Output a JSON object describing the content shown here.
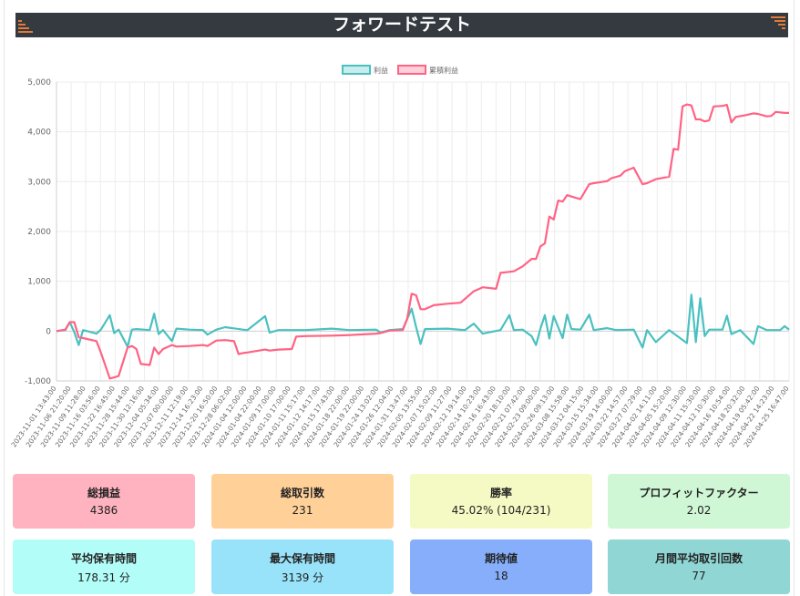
{
  "page": {
    "title": "フォワードテスト"
  },
  "colors": {
    "header_bg": "#343a40",
    "profit_line": "#4bc0c0",
    "cumulative_line": "#ff6384",
    "corner_accent": "#e07b39"
  },
  "icons": {
    "left_corner": "stripes-icon",
    "right_corner": "stripes-icon"
  },
  "chart_data": {
    "type": "line",
    "legend_position": "top",
    "grid": true,
    "ylim": [
      -1000,
      5000
    ],
    "yticks": [
      "5,000",
      "4,000",
      "3,000",
      "2,000",
      "1,000",
      "0",
      "-1,000"
    ],
    "ytick_values": [
      5000,
      4000,
      3000,
      2000,
      1000,
      0,
      -1000
    ],
    "x_labels": [
      "2023-11-01 13:43:00",
      "2023-11-06 21:20:00",
      "2023-11-09 11:28:00",
      "2023-11-16 03:56:00",
      "2023-11-22 16:45:00",
      "2023-11-28 15:44:00",
      "2023-11-30 12:16:00",
      "2023-12-04 05:34:00",
      "2023-12-07 00:00:00",
      "2023-12-11 12:19:00",
      "2023-12-14 16:23:00",
      "2023-12-20 16:50:00",
      "2023-12-28 06:02:00",
      "2024-01-04 12:00:00",
      "2024-01-04 22:00:00",
      "2024-01-09 17:00:00",
      "2024-01-10 17:00:00",
      "2024-01-11 15:17:00",
      "2024-01-12 14:17:00",
      "2024-01-15 17:43:00",
      "2024-01-18 22:00:00",
      "2024-01-19 22:00:00",
      "2024-01-24 13:02:00",
      "2024-01-26 12:04:00",
      "2024-01-31 13:47:00",
      "2024-02-05 13:55:00",
      "2024-02-07 15:02:00",
      "2024-02-09 11:27:00",
      "2024-02-12 19:14:00",
      "2024-02-14 10:23:00",
      "2024-02-16 16:43:00",
      "2024-02-20 18:10:00",
      "2024-02-21 07:42:00",
      "2024-02-23 09:00:00",
      "2024-02-26 09:13:00",
      "2024-03-08 15:58:00",
      "2024-03-12 04:15:00",
      "2024-03-15 15:34:00",
      "2024-03-19 14:00:00",
      "2024-03-22 14:57:00",
      "2024-03-27 07:29:00",
      "2024-04-02 14:11:00",
      "2024-04-05 15:20:00",
      "2024-04-09 12:30:00",
      "2024-04-11 15:30:00",
      "2024-04-12 10:30:00",
      "2024-04-16 10:54:00",
      "2024-04-18 20:32:00",
      "2024-04-19 05:42:00",
      "2024-04-22 14:23:00",
      "2024-04-25 16:47:00"
    ],
    "series": [
      {
        "name": "利益",
        "color": "#4bc0c0",
        "points": [
          [
            0,
            0
          ],
          [
            2,
            20
          ],
          [
            3,
            180
          ],
          [
            4,
            -20
          ],
          [
            5,
            -280
          ],
          [
            6,
            20
          ],
          [
            9,
            -50
          ],
          [
            10,
            30
          ],
          [
            12,
            320
          ],
          [
            13,
            -40
          ],
          [
            14,
            30
          ],
          [
            16,
            -310
          ],
          [
            17,
            30
          ],
          [
            18,
            40
          ],
          [
            21,
            20
          ],
          [
            22,
            350
          ],
          [
            23,
            -60
          ],
          [
            24,
            20
          ],
          [
            26,
            -200
          ],
          [
            27,
            50
          ],
          [
            30,
            30
          ],
          [
            33,
            20
          ],
          [
            34,
            -70
          ],
          [
            36,
            30
          ],
          [
            38,
            80
          ],
          [
            42,
            30
          ],
          [
            43,
            20
          ],
          [
            47,
            300
          ],
          [
            48,
            -30
          ],
          [
            50,
            20
          ],
          [
            56,
            20
          ],
          [
            62,
            50
          ],
          [
            66,
            20
          ],
          [
            72,
            30
          ],
          [
            73,
            -30
          ],
          [
            75,
            20
          ],
          [
            78,
            40
          ],
          [
            80,
            450
          ],
          [
            81,
            80
          ],
          [
            82,
            -260
          ],
          [
            83,
            40
          ],
          [
            88,
            50
          ],
          [
            92,
            20
          ],
          [
            94,
            150
          ],
          [
            96,
            -50
          ],
          [
            100,
            20
          ],
          [
            102,
            320
          ],
          [
            103,
            20
          ],
          [
            105,
            30
          ],
          [
            107,
            -100
          ],
          [
            108,
            -280
          ],
          [
            109,
            50
          ],
          [
            110,
            320
          ],
          [
            111,
            -150
          ],
          [
            112,
            300
          ],
          [
            114,
            -140
          ],
          [
            115,
            330
          ],
          [
            116,
            40
          ],
          [
            118,
            30
          ],
          [
            120,
            330
          ],
          [
            121,
            20
          ],
          [
            124,
            60
          ],
          [
            126,
            20
          ],
          [
            130,
            30
          ],
          [
            132,
            -330
          ],
          [
            133,
            20
          ],
          [
            135,
            -220
          ],
          [
            138,
            20
          ],
          [
            142,
            -240
          ],
          [
            143,
            730
          ],
          [
            144,
            -220
          ],
          [
            145,
            660
          ],
          [
            146,
            -100
          ],
          [
            147,
            30
          ],
          [
            150,
            30
          ],
          [
            151,
            310
          ],
          [
            152,
            -60
          ],
          [
            154,
            20
          ],
          [
            157,
            -260
          ],
          [
            158,
            100
          ],
          [
            160,
            20
          ],
          [
            163,
            20
          ],
          [
            164,
            100
          ],
          [
            165,
            30
          ]
        ]
      },
      {
        "name": "累積利益",
        "color": "#ff6384",
        "points": [
          [
            0,
            0
          ],
          [
            2,
            30
          ],
          [
            3,
            180
          ],
          [
            4,
            180
          ],
          [
            5,
            -120
          ],
          [
            6,
            -140
          ],
          [
            9,
            -200
          ],
          [
            10,
            -430
          ],
          [
            12,
            -950
          ],
          [
            13,
            -930
          ],
          [
            14,
            -900
          ],
          [
            16,
            -330
          ],
          [
            17,
            -300
          ],
          [
            18,
            -360
          ],
          [
            19,
            -660
          ],
          [
            21,
            -680
          ],
          [
            22,
            -330
          ],
          [
            23,
            -460
          ],
          [
            24,
            -360
          ],
          [
            26,
            -280
          ],
          [
            27,
            -310
          ],
          [
            30,
            -300
          ],
          [
            33,
            -280
          ],
          [
            34,
            -300
          ],
          [
            36,
            -190
          ],
          [
            38,
            -180
          ],
          [
            40,
            -200
          ],
          [
            41,
            -460
          ],
          [
            42,
            -440
          ],
          [
            43,
            -430
          ],
          [
            47,
            -370
          ],
          [
            48,
            -390
          ],
          [
            50,
            -370
          ],
          [
            53,
            -360
          ],
          [
            54,
            -110
          ],
          [
            56,
            -100
          ],
          [
            62,
            -90
          ],
          [
            66,
            -80
          ],
          [
            70,
            -60
          ],
          [
            72,
            -50
          ],
          [
            73,
            -40
          ],
          [
            75,
            10
          ],
          [
            78,
            20
          ],
          [
            79,
            250
          ],
          [
            80,
            750
          ],
          [
            81,
            720
          ],
          [
            82,
            440
          ],
          [
            83,
            440
          ],
          [
            85,
            520
          ],
          [
            88,
            550
          ],
          [
            91,
            570
          ],
          [
            94,
            800
          ],
          [
            96,
            880
          ],
          [
            99,
            850
          ],
          [
            100,
            1170
          ],
          [
            102,
            1190
          ],
          [
            103,
            1200
          ],
          [
            105,
            1300
          ],
          [
            107,
            1450
          ],
          [
            108,
            1450
          ],
          [
            109,
            1700
          ],
          [
            110,
            1760
          ],
          [
            111,
            2300
          ],
          [
            112,
            2240
          ],
          [
            113,
            2620
          ],
          [
            114,
            2600
          ],
          [
            115,
            2730
          ],
          [
            116,
            2700
          ],
          [
            118,
            2650
          ],
          [
            120,
            2950
          ],
          [
            121,
            2970
          ],
          [
            124,
            3010
          ],
          [
            125,
            3070
          ],
          [
            127,
            3120
          ],
          [
            128,
            3210
          ],
          [
            130,
            3280
          ],
          [
            132,
            2950
          ],
          [
            133,
            2970
          ],
          [
            135,
            3050
          ],
          [
            138,
            3100
          ],
          [
            139,
            3660
          ],
          [
            140,
            3640
          ],
          [
            141,
            4510
          ],
          [
            142,
            4550
          ],
          [
            143,
            4530
          ],
          [
            144,
            4250
          ],
          [
            145,
            4250
          ],
          [
            146,
            4210
          ],
          [
            147,
            4230
          ],
          [
            148,
            4510
          ],
          [
            150,
            4520
          ],
          [
            151,
            4540
          ],
          [
            152,
            4190
          ],
          [
            153,
            4300
          ],
          [
            155,
            4330
          ],
          [
            157,
            4370
          ],
          [
            158,
            4360
          ],
          [
            160,
            4310
          ],
          [
            161,
            4320
          ],
          [
            162,
            4400
          ],
          [
            164,
            4380
          ],
          [
            165,
            4380
          ]
        ]
      }
    ],
    "x_max": 165
  },
  "cards": [
    {
      "label": "総損益",
      "value": "4386",
      "color": "#ffb3c1"
    },
    {
      "label": "総取引数",
      "value": "231",
      "color": "#ffd199"
    },
    {
      "label": "勝率",
      "value": "45.02% (104/231)",
      "color": "#f5fac4"
    },
    {
      "label": "プロフィットファクター",
      "value": "2.02",
      "color": "#cff7d6"
    },
    {
      "label": "平均保有時間",
      "value": "178.31 分",
      "color": "#b3fdf8"
    },
    {
      "label": "最大保有時間",
      "value": "3139 分",
      "color": "#99e3fa"
    },
    {
      "label": "期待値",
      "value": "18",
      "color": "#86aefa"
    },
    {
      "label": "月間平均取引回数",
      "value": "77",
      "color": "#8fd6d4"
    }
  ]
}
